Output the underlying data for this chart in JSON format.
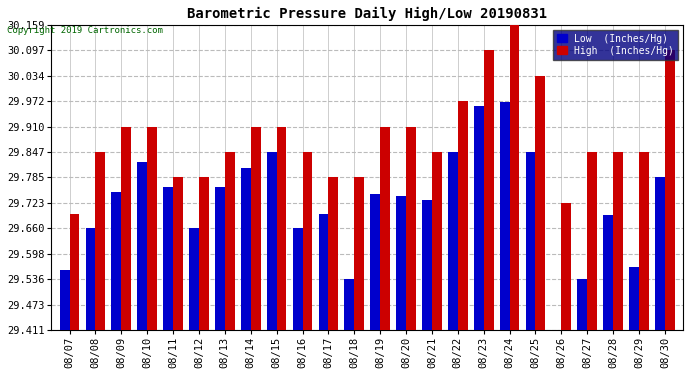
{
  "title": "Barometric Pressure Daily High/Low 20190831",
  "copyright": "Copyright 2019 Cartronics.com",
  "background_color": "#ffffff",
  "plot_bg_color": "#ffffff",
  "grid_color": "#bbbbbb",
  "low_color": "#0000cc",
  "high_color": "#cc0000",
  "dates": [
    "08/07",
    "08/08",
    "08/09",
    "08/10",
    "08/11",
    "08/12",
    "08/13",
    "08/14",
    "08/15",
    "08/16",
    "08/17",
    "08/18",
    "08/19",
    "08/20",
    "08/21",
    "08/22",
    "08/23",
    "08/24",
    "08/25",
    "08/26",
    "08/27",
    "08/28",
    "08/29",
    "08/30"
  ],
  "low_values": [
    29.558,
    29.66,
    29.75,
    29.822,
    29.762,
    29.66,
    29.762,
    29.808,
    29.847,
    29.66,
    29.695,
    29.536,
    29.745,
    29.74,
    29.73,
    29.847,
    29.96,
    29.97,
    29.847,
    29.411,
    29.536,
    29.693,
    29.566,
    29.785
  ],
  "high_values": [
    29.695,
    29.847,
    29.91,
    29.91,
    29.785,
    29.785,
    29.847,
    29.91,
    29.91,
    29.847,
    29.785,
    29.785,
    29.91,
    29.91,
    29.847,
    29.972,
    30.097,
    30.159,
    30.034,
    29.722,
    29.847,
    29.847,
    29.847,
    30.097
  ],
  "ylim_min": 29.411,
  "ylim_max": 30.159,
  "yticks": [
    29.411,
    29.473,
    29.536,
    29.598,
    29.66,
    29.723,
    29.785,
    29.847,
    29.91,
    29.972,
    30.034,
    30.097,
    30.159
  ]
}
